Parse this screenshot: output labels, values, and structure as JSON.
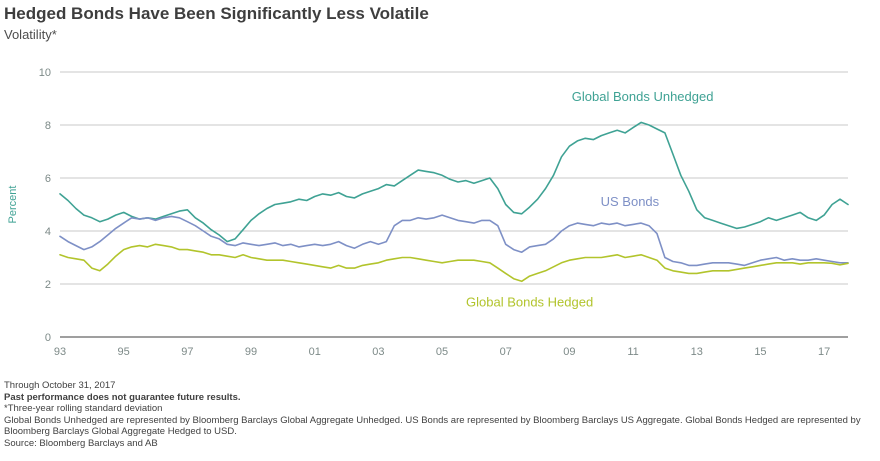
{
  "header": {
    "title": "Hedged Bonds Have Been Significantly Less Volatile",
    "subtitle": "Volatility*"
  },
  "chart_data": {
    "type": "line",
    "title": "Hedged Bonds Have Been Significantly Less Volatile",
    "subtitle": "Volatility*",
    "xlabel": "",
    "ylabel": "Percent",
    "ylabel_color": "#3fa294",
    "ylim": [
      0,
      10
    ],
    "y_ticks": [
      0,
      2,
      4,
      6,
      8,
      10
    ],
    "x_start": 1993.0,
    "x_step": 0.25,
    "x_end": 2017.75,
    "x_tick_years": [
      1993,
      1995,
      1997,
      1999,
      2001,
      2003,
      2005,
      2007,
      2009,
      2011,
      2013,
      2015,
      2017
    ],
    "x_tick_labels": [
      "93",
      "95",
      "97",
      "99",
      "01",
      "03",
      "05",
      "07",
      "09",
      "11",
      "13",
      "15",
      "17"
    ],
    "grid": "horizontal",
    "grid_color": "#c9c9c9",
    "axis_color": "#3f3f3f",
    "tick_color": "#7d8a88",
    "legend_position": "inline-labels",
    "series": [
      {
        "name": "Global Bonds Unhedged",
        "color": "#3fa294",
        "values": [
          5.4,
          5.15,
          4.85,
          4.6,
          4.5,
          4.35,
          4.45,
          4.6,
          4.7,
          4.55,
          4.45,
          4.5,
          4.45,
          4.55,
          4.65,
          4.75,
          4.8,
          4.5,
          4.3,
          4.05,
          3.85,
          3.6,
          3.7,
          4.05,
          4.4,
          4.65,
          4.85,
          5.0,
          5.05,
          5.1,
          5.2,
          5.15,
          5.3,
          5.4,
          5.35,
          5.45,
          5.3,
          5.25,
          5.4,
          5.5,
          5.6,
          5.75,
          5.7,
          5.9,
          6.1,
          6.3,
          6.25,
          6.2,
          6.1,
          5.95,
          5.85,
          5.9,
          5.8,
          5.9,
          6.0,
          5.6,
          5.0,
          4.7,
          4.65,
          4.9,
          5.2,
          5.6,
          6.1,
          6.8,
          7.2,
          7.4,
          7.5,
          7.45,
          7.6,
          7.7,
          7.8,
          7.7,
          7.9,
          8.1,
          8.0,
          7.85,
          7.7,
          6.9,
          6.1,
          5.5,
          4.8,
          4.5,
          4.4,
          4.3,
          4.2,
          4.1,
          4.15,
          4.25,
          4.35,
          4.5,
          4.4,
          4.5,
          4.6,
          4.7,
          4.5,
          4.4,
          4.6,
          5.0,
          5.2,
          5.0
        ]
      },
      {
        "name": "US Bonds",
        "color": "#7e90c6",
        "values": [
          3.8,
          3.6,
          3.45,
          3.3,
          3.4,
          3.6,
          3.85,
          4.1,
          4.3,
          4.5,
          4.45,
          4.5,
          4.4,
          4.5,
          4.55,
          4.5,
          4.35,
          4.2,
          4.0,
          3.8,
          3.7,
          3.5,
          3.45,
          3.55,
          3.5,
          3.45,
          3.5,
          3.55,
          3.45,
          3.5,
          3.4,
          3.45,
          3.5,
          3.45,
          3.5,
          3.6,
          3.45,
          3.35,
          3.5,
          3.6,
          3.5,
          3.6,
          4.2,
          4.4,
          4.4,
          4.5,
          4.45,
          4.5,
          4.6,
          4.5,
          4.4,
          4.35,
          4.3,
          4.4,
          4.4,
          4.2,
          3.5,
          3.3,
          3.2,
          3.4,
          3.45,
          3.5,
          3.7,
          4.0,
          4.2,
          4.3,
          4.25,
          4.2,
          4.3,
          4.25,
          4.3,
          4.2,
          4.25,
          4.3,
          4.2,
          3.9,
          3.0,
          2.85,
          2.8,
          2.7,
          2.7,
          2.75,
          2.8,
          2.8,
          2.8,
          2.75,
          2.7,
          2.8,
          2.9,
          2.95,
          3.0,
          2.9,
          2.95,
          2.9,
          2.9,
          2.95,
          2.9,
          2.85,
          2.8,
          2.8
        ]
      },
      {
        "name": "Global Bonds Hedged",
        "color": "#b2c42c",
        "values": [
          3.1,
          3.0,
          2.95,
          2.9,
          2.6,
          2.5,
          2.75,
          3.05,
          3.3,
          3.4,
          3.45,
          3.4,
          3.5,
          3.45,
          3.4,
          3.3,
          3.3,
          3.25,
          3.2,
          3.1,
          3.1,
          3.05,
          3.0,
          3.1,
          3.0,
          2.95,
          2.9,
          2.9,
          2.9,
          2.85,
          2.8,
          2.75,
          2.7,
          2.65,
          2.6,
          2.7,
          2.6,
          2.6,
          2.7,
          2.75,
          2.8,
          2.9,
          2.95,
          3.0,
          3.0,
          2.95,
          2.9,
          2.85,
          2.8,
          2.85,
          2.9,
          2.9,
          2.9,
          2.85,
          2.8,
          2.6,
          2.4,
          2.2,
          2.1,
          2.3,
          2.4,
          2.5,
          2.65,
          2.8,
          2.9,
          2.95,
          3.0,
          3.0,
          3.0,
          3.05,
          3.1,
          3.0,
          3.05,
          3.1,
          3.0,
          2.9,
          2.6,
          2.5,
          2.45,
          2.4,
          2.4,
          2.45,
          2.5,
          2.5,
          2.5,
          2.55,
          2.6,
          2.65,
          2.7,
          2.75,
          2.8,
          2.8,
          2.8,
          2.75,
          2.8,
          2.8,
          2.8,
          2.78,
          2.72,
          2.78
        ]
      }
    ],
    "annotations": [
      {
        "text": "Global Bonds Unhedged",
        "x": 2011.3,
        "y": 8.9,
        "color": "#3fa294"
      },
      {
        "text": "US Bonds",
        "x": 2010.9,
        "y": 4.95,
        "color": "#7e90c6"
      },
      {
        "text": "Global Bonds Hedged",
        "x": 2007.75,
        "y": 1.15,
        "color": "#b2c42c"
      }
    ]
  },
  "footnotes": {
    "through_date": "Through October 31, 2017",
    "disclaimer": "Past performance does not guarantee future results.",
    "definition": "*Three-year rolling standard deviation",
    "representation": "Global Bonds Unhedged are represented by Bloomberg Barclays Global Aggregate Unhedged. US Bonds are represented by Bloomberg Barclays US Aggregate. Global Bonds Hedged are represented by Bloomberg Barclays Global Aggregate Hedged to USD.",
    "source": "Source: Bloomberg Barclays and AB"
  }
}
